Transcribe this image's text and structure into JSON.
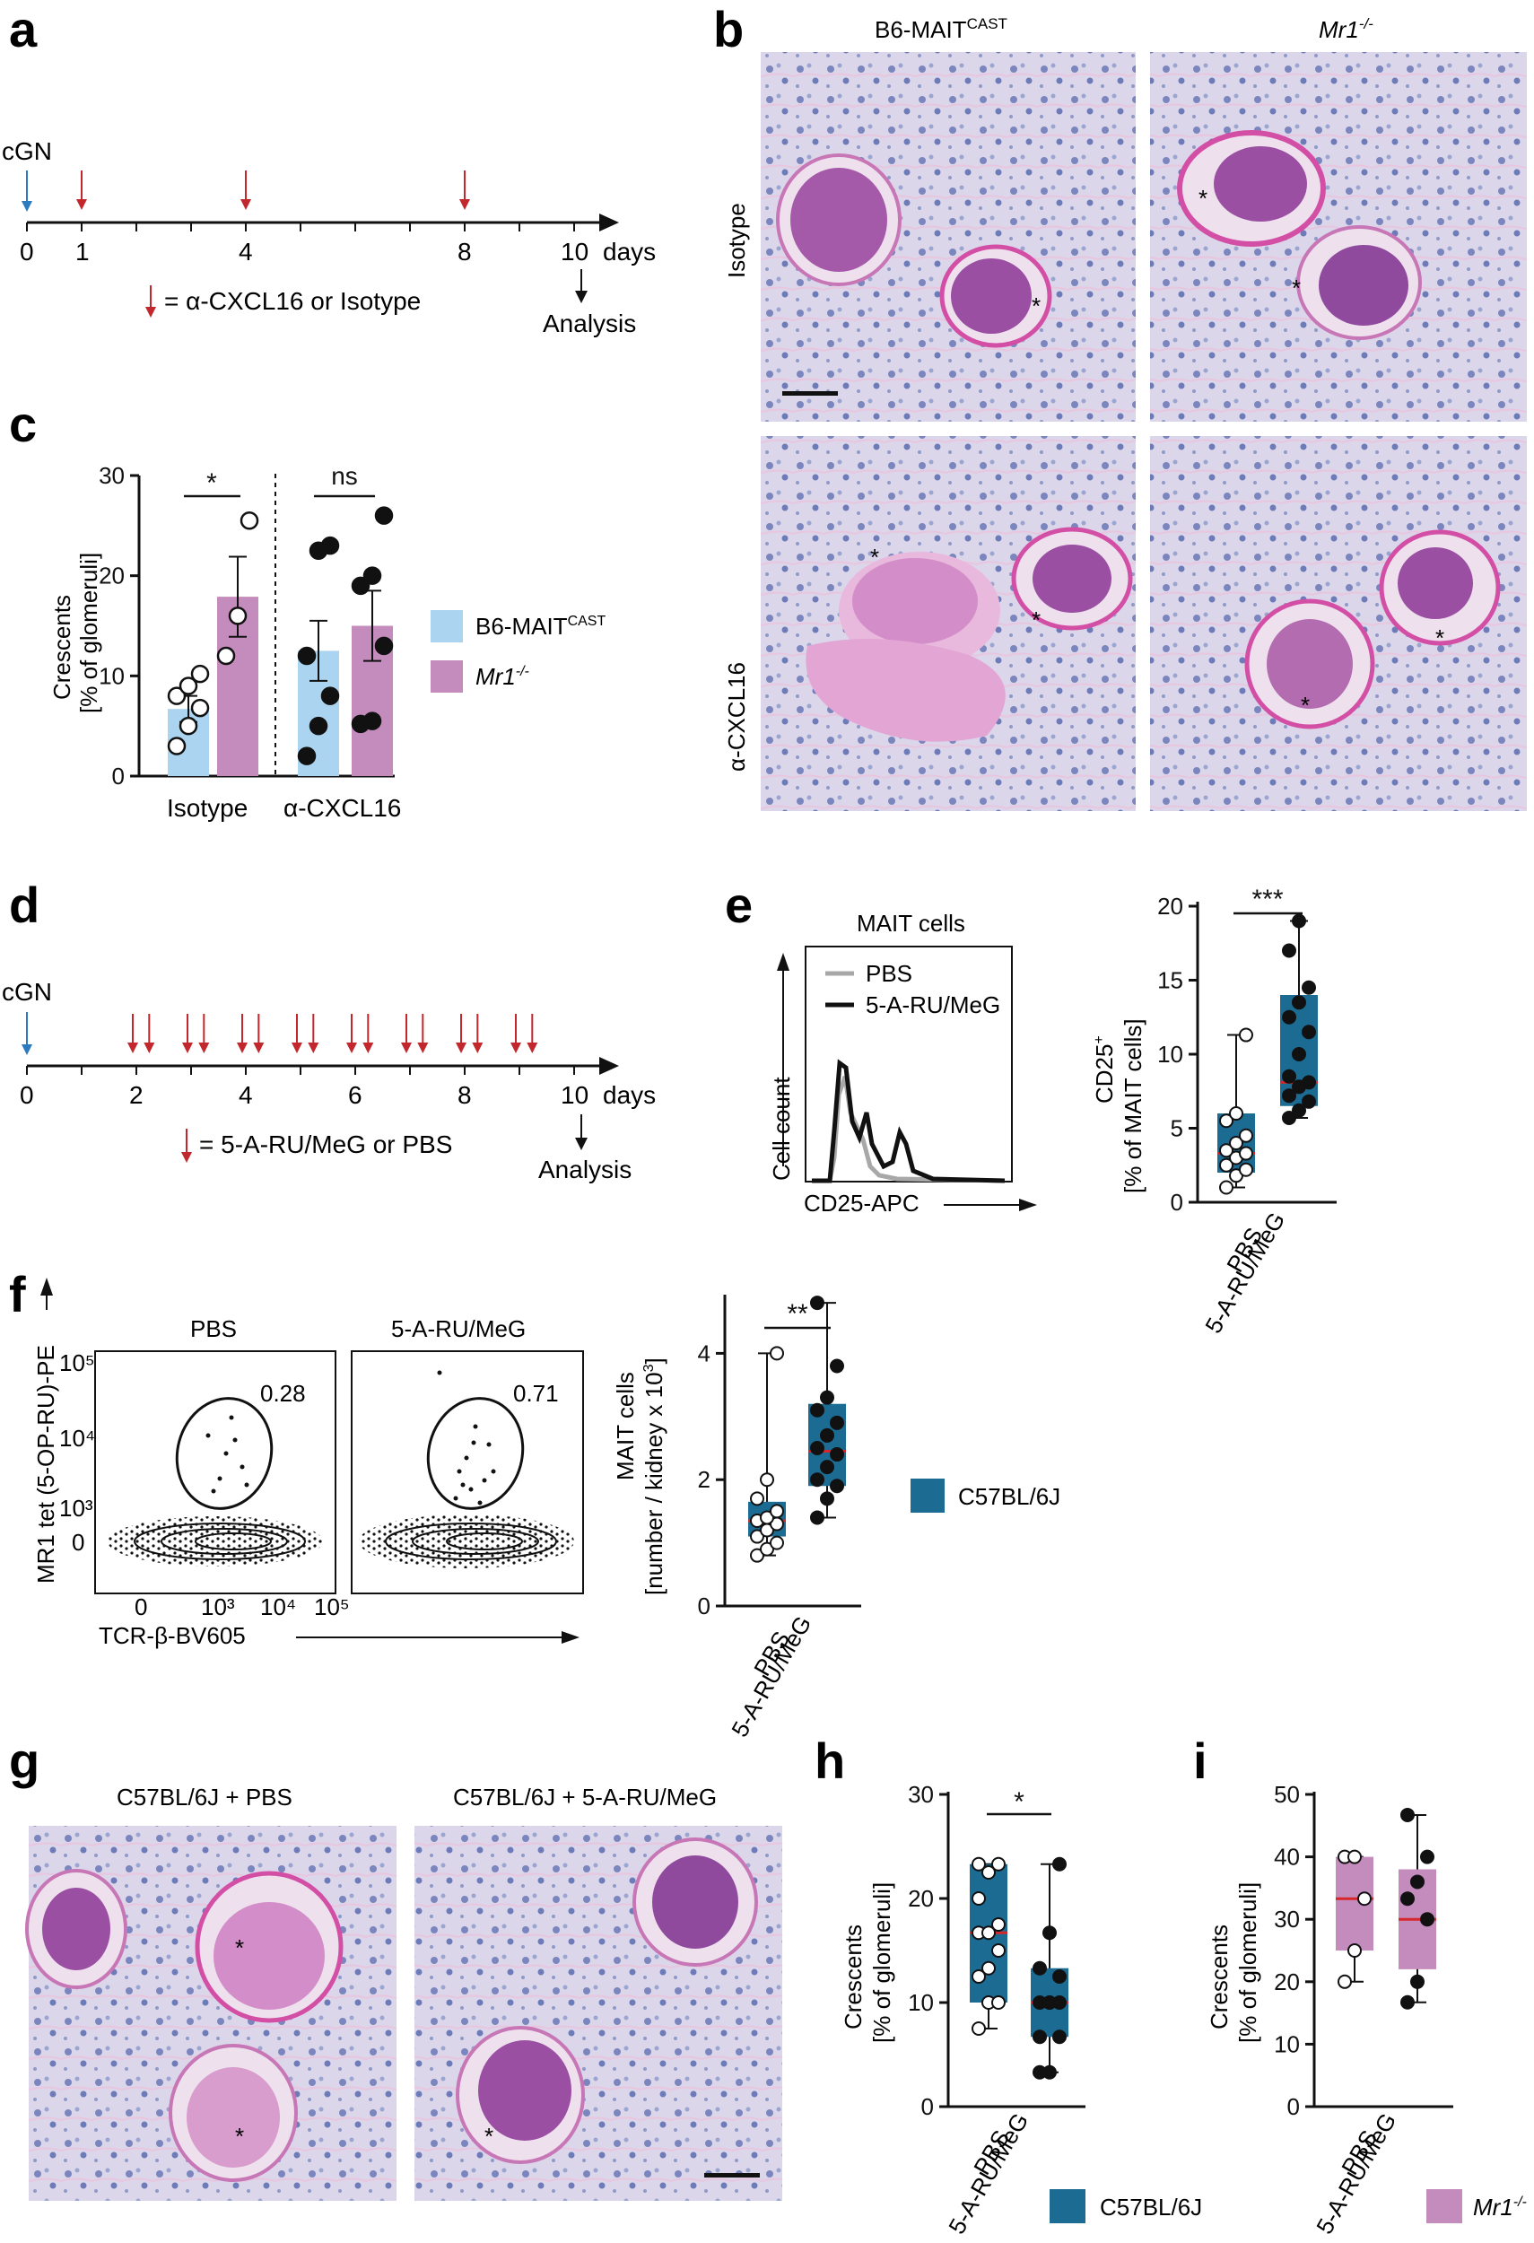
{
  "panels": {
    "a": "a",
    "b": "b",
    "c": "c",
    "d": "d",
    "e": "e",
    "f": "f",
    "g": "g",
    "h": "h",
    "i": "i"
  },
  "colors": {
    "b6_mait_cast": "#aad4ef",
    "mr1": "#c48bbd",
    "c57bl6j": "#1b6b93",
    "arrow_red": "#c1272d",
    "arrow_blue": "#2c7bbf",
    "median_red": "#d6282c"
  },
  "timeline_a": {
    "cgn_label": "cGN",
    "ticks": [
      "0",
      "1",
      "4",
      "8",
      "10"
    ],
    "unit": "days",
    "legend": "= α-CXCL16 or Isotype",
    "analysis": "Analysis",
    "injection_days": [
      1,
      4,
      8
    ]
  },
  "histology_b": {
    "col_headers": {
      "left_main": "B6-MAIT",
      "left_sup": "CAST",
      "right": "Mr1",
      "right_sup": "-/-"
    },
    "row_headers": [
      "Isotype",
      "α-CXCL16"
    ],
    "asterisk": "*"
  },
  "timeline_d": {
    "cgn_label": "cGN",
    "ticks": [
      "0",
      "2",
      "4",
      "6",
      "8",
      "10"
    ],
    "unit": "days",
    "legend": "= 5-A-RU/MeG or PBS",
    "analysis": "Analysis"
  },
  "legend_c": {
    "b6_main": "B6-MAIT",
    "b6_sup": "CAST",
    "mr1_main": "Mr1",
    "mr1_sup": "-/-"
  },
  "legend_f": {
    "label": "C57BL/6J"
  },
  "legend_h": {
    "label": "C57BL/6J"
  },
  "legend_i": {
    "main": "Mr1",
    "sup": "-/-"
  },
  "histogram_e": {
    "title": "MAIT cells",
    "series": [
      "PBS",
      "5-A-RU/MeG"
    ],
    "xlabel": "CD25-APC",
    "ylabel": "Cell count"
  },
  "flow_f": {
    "plots": [
      {
        "title": "PBS",
        "percent": "0.28"
      },
      {
        "title": "5-A-RU/MeG",
        "percent": "0.71"
      }
    ],
    "ylabel": "MR1 tet (5-OP-RU)-PE",
    "xlabel": "TCR-β-BV605",
    "y_ticks": [
      "10⁵",
      "10⁴",
      "10³",
      "0"
    ],
    "x_ticks": [
      "0",
      "10³",
      "10⁴",
      "10⁵"
    ]
  },
  "histology_g": {
    "left_title": "C57BL/6J + PBS",
    "right_title": "C57BL/6J + 5-A-RU/MeG",
    "asterisk": "*"
  },
  "chart_data": [
    {
      "panel": "c",
      "type": "bar",
      "ylabel": "Crescents [% of glomeruli]",
      "ylim": [
        0,
        30
      ],
      "yticks": [
        0,
        10,
        20,
        30
      ],
      "groups": [
        "Isotype",
        "α-CXCL16"
      ],
      "significance": [
        "*",
        "ns"
      ],
      "series": [
        {
          "name": "B6-MAITCAST",
          "color": "#aad4ef",
          "means": [
            6.7,
            12.5
          ],
          "sem": [
            1.3,
            3.0
          ],
          "points": [
            [
              3.0,
              5.0,
              6.8,
              8.0,
              9.0,
              10.2
            ],
            [
              2.0,
              5.0,
              8.0,
              12.0,
              22.5,
              23.0
            ]
          ]
        },
        {
          "name": "Mr1-/-",
          "color": "#c48bbd",
          "means": [
            17.9,
            15.0
          ],
          "sem": [
            4.0,
            3.5
          ],
          "points": [
            [
              12.0,
              16.0,
              25.5
            ],
            [
              5.2,
              5.5,
              13.0,
              19.0,
              20.0,
              26.0
            ]
          ]
        }
      ]
    },
    {
      "panel": "e",
      "type": "box",
      "ylabel": "CD25+ [% of MAIT cells]",
      "ylim": [
        0,
        20
      ],
      "yticks": [
        0,
        5,
        10,
        15,
        20
      ],
      "categories": [
        "PBS",
        "5-A-RU/MeG"
      ],
      "significance": "***",
      "boxes": [
        {
          "min": 1.0,
          "q1": 2.0,
          "median": 3.3,
          "q3": 6.0,
          "max": 11.3
        },
        {
          "min": 5.7,
          "q1": 6.5,
          "median": 8.1,
          "q3": 14.0,
          "max": 19.0
        }
      ],
      "points": [
        [
          1.0,
          1.8,
          2.2,
          2.5,
          3.0,
          3.3,
          3.5,
          4.0,
          4.5,
          5.5,
          6.0,
          11.3
        ],
        [
          5.7,
          6.2,
          6.8,
          7.2,
          7.8,
          8.1,
          8.5,
          10.0,
          11.5,
          12.5,
          13.5,
          14.5,
          17.0,
          19.0
        ]
      ]
    },
    {
      "panel": "f",
      "type": "box",
      "ylabel": "MAIT cells [number / kidney x 10³]",
      "ylim": [
        0,
        5
      ],
      "yticks": [
        0,
        2,
        4
      ],
      "categories": [
        "PBS",
        "5-A-RU/MeG"
      ],
      "significance": "**",
      "boxes": [
        {
          "min": 0.8,
          "q1": 1.1,
          "median": 1.35,
          "q3": 1.65,
          "max": 4.0
        },
        {
          "min": 1.4,
          "q1": 1.9,
          "median": 2.45,
          "q3": 3.2,
          "max": 4.8
        }
      ],
      "points": [
        [
          0.8,
          0.9,
          1.0,
          1.1,
          1.2,
          1.3,
          1.35,
          1.4,
          1.5,
          1.7,
          2.0,
          4.0
        ],
        [
          1.4,
          1.7,
          1.9,
          2.0,
          2.2,
          2.4,
          2.5,
          2.7,
          2.9,
          3.1,
          3.3,
          3.8,
          4.8
        ]
      ]
    },
    {
      "panel": "h",
      "type": "box",
      "ylabel": "Crescents [% of glomeruli]",
      "ylim": [
        0,
        30
      ],
      "yticks": [
        0,
        10,
        20,
        30
      ],
      "categories": [
        "PBS",
        "5-A-RU/MeG"
      ],
      "significance": "*",
      "boxes": [
        {
          "min": 7.5,
          "q1": 10.0,
          "median": 16.7,
          "q3": 23.3,
          "max": 23.3
        },
        {
          "min": 3.3,
          "q1": 6.7,
          "median": 10.0,
          "q3": 13.3,
          "max": 23.3
        }
      ],
      "points": [
        [
          7.5,
          10.0,
          10.0,
          12.5,
          13.3,
          15.0,
          16.7,
          16.7,
          17.5,
          20.0,
          22.5,
          23.3,
          23.3
        ],
        [
          3.3,
          3.3,
          6.7,
          6.7,
          10.0,
          10.0,
          10.0,
          10.0,
          12.5,
          13.3,
          16.7,
          23.3
        ]
      ]
    },
    {
      "panel": "i",
      "type": "box",
      "ylabel": "Crescents [% of glomeruli]",
      "ylim": [
        0,
        50
      ],
      "yticks": [
        0,
        10,
        20,
        30,
        40,
        50
      ],
      "categories": [
        "PBS",
        "5-A-RU/MeG"
      ],
      "boxes": [
        {
          "min": 20.0,
          "q1": 25.0,
          "median": 33.3,
          "q3": 40.0,
          "max": 40.0
        },
        {
          "min": 16.7,
          "q1": 22.0,
          "median": 30.0,
          "q3": 38.0,
          "max": 46.7
        }
      ],
      "points": [
        [
          20.0,
          25.0,
          33.3,
          40.0,
          40.0
        ],
        [
          16.7,
          20.0,
          30.0,
          33.3,
          36.0,
          40.0,
          46.7
        ]
      ]
    }
  ]
}
